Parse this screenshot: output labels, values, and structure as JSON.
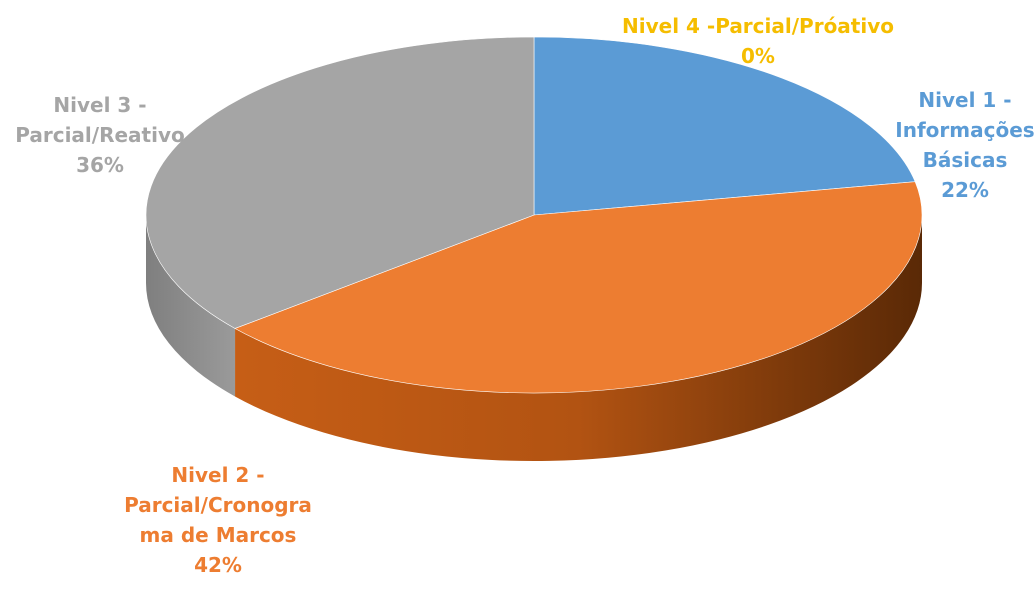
{
  "chart_data": {
    "type": "pie",
    "title": "",
    "style": "3d",
    "slices": [
      {
        "label_lines": [
          "Nivel 1 -",
          "Informações",
          "Básicas"
        ],
        "value": 22,
        "value_label": "22%",
        "color": "#5b9bd5"
      },
      {
        "label_lines": [
          "Nivel 2 -",
          "Parcial/Cronogra",
          "ma de Marcos"
        ],
        "value": 42,
        "value_label": "42%",
        "color": "#ed7d31"
      },
      {
        "label_lines": [
          "Nivel 3 -",
          "Parcial/Reativo"
        ],
        "value": 36,
        "value_label": "36%",
        "color": "#a5a5a5"
      },
      {
        "label_lines": [
          "Nivel 4 -Parcial/Próativo"
        ],
        "value": 0,
        "value_label": "0%",
        "color": "#ffc000"
      }
    ]
  }
}
